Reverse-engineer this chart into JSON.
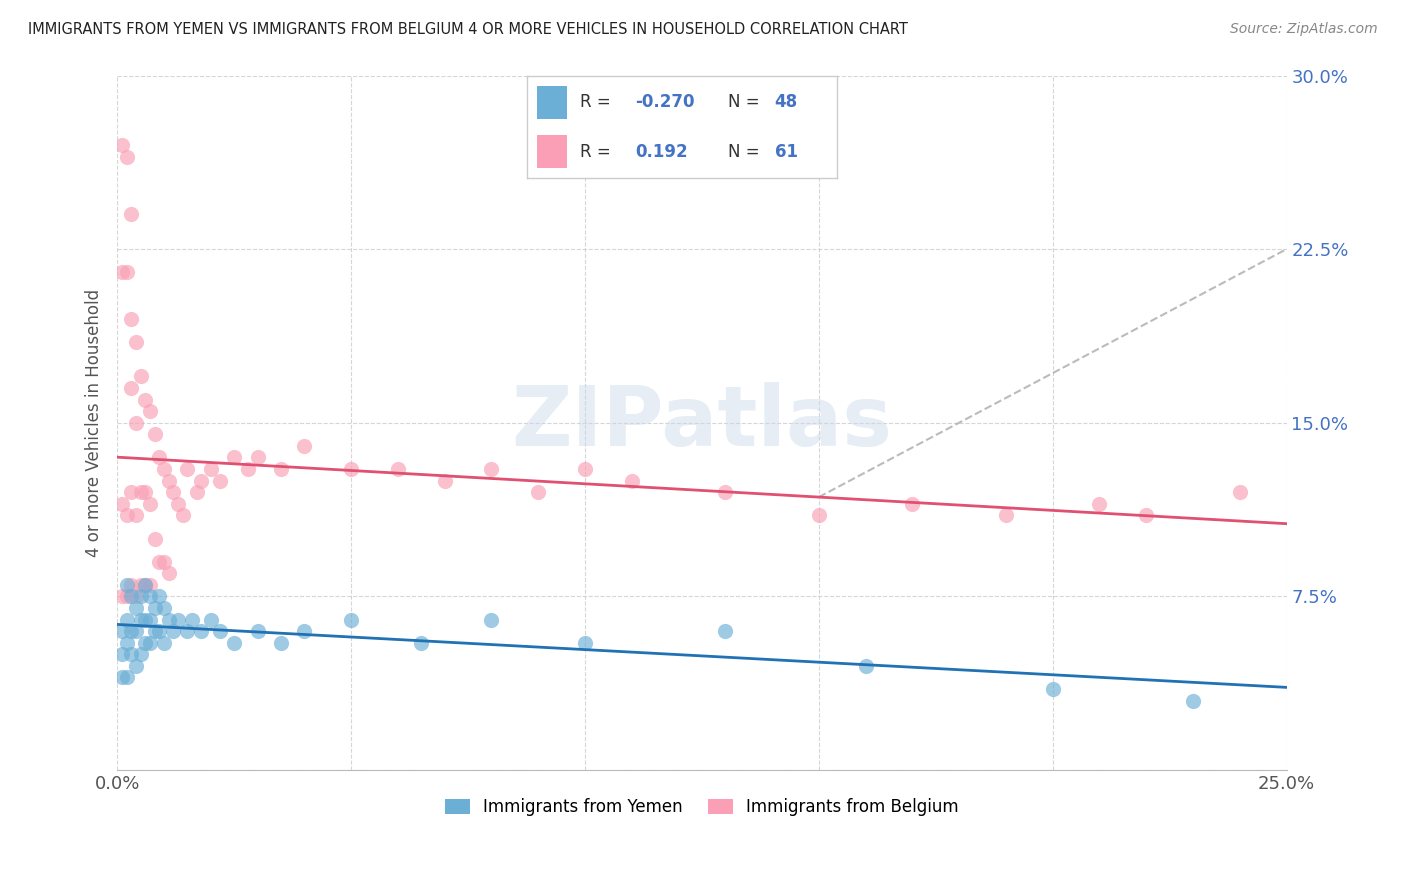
{
  "title": "IMMIGRANTS FROM YEMEN VS IMMIGRANTS FROM BELGIUM 4 OR MORE VEHICLES IN HOUSEHOLD CORRELATION CHART",
  "source": "Source: ZipAtlas.com",
  "ylabel": "4 or more Vehicles in Household",
  "xlim": [
    0.0,
    0.25
  ],
  "ylim": [
    0.0,
    0.3
  ],
  "xticks": [
    0.0,
    0.05,
    0.1,
    0.15,
    0.2,
    0.25
  ],
  "yticks": [
    0.0,
    0.075,
    0.15,
    0.225,
    0.3
  ],
  "legend_labels": [
    "Immigrants from Yemen",
    "Immigrants from Belgium"
  ],
  "R_yemen": -0.27,
  "N_yemen": 48,
  "R_belgium": 0.192,
  "N_belgium": 61,
  "color_yemen": "#6baed6",
  "color_belgium": "#fa9fb5",
  "line_color_yemen": "#2171b5",
  "line_color_belgium": "#e05070",
  "watermark": "ZIPatlas",
  "yemen_x": [
    0.001,
    0.001,
    0.001,
    0.002,
    0.002,
    0.002,
    0.002,
    0.003,
    0.003,
    0.003,
    0.004,
    0.004,
    0.004,
    0.005,
    0.005,
    0.005,
    0.006,
    0.006,
    0.006,
    0.007,
    0.007,
    0.007,
    0.008,
    0.008,
    0.009,
    0.009,
    0.01,
    0.01,
    0.011,
    0.012,
    0.013,
    0.015,
    0.016,
    0.018,
    0.02,
    0.022,
    0.025,
    0.03,
    0.035,
    0.04,
    0.05,
    0.065,
    0.08,
    0.1,
    0.13,
    0.16,
    0.2,
    0.23
  ],
  "yemen_y": [
    0.06,
    0.05,
    0.04,
    0.08,
    0.065,
    0.055,
    0.04,
    0.075,
    0.06,
    0.05,
    0.07,
    0.06,
    0.045,
    0.075,
    0.065,
    0.05,
    0.08,
    0.065,
    0.055,
    0.075,
    0.065,
    0.055,
    0.07,
    0.06,
    0.075,
    0.06,
    0.07,
    0.055,
    0.065,
    0.06,
    0.065,
    0.06,
    0.065,
    0.06,
    0.065,
    0.06,
    0.055,
    0.06,
    0.055,
    0.06,
    0.065,
    0.055,
    0.065,
    0.055,
    0.06,
    0.045,
    0.035,
    0.03
  ],
  "belgium_x": [
    0.001,
    0.001,
    0.001,
    0.001,
    0.002,
    0.002,
    0.002,
    0.002,
    0.003,
    0.003,
    0.003,
    0.003,
    0.003,
    0.004,
    0.004,
    0.004,
    0.004,
    0.005,
    0.005,
    0.005,
    0.006,
    0.006,
    0.006,
    0.007,
    0.007,
    0.007,
    0.008,
    0.008,
    0.009,
    0.009,
    0.01,
    0.01,
    0.011,
    0.011,
    0.012,
    0.013,
    0.014,
    0.015,
    0.017,
    0.018,
    0.02,
    0.022,
    0.025,
    0.028,
    0.03,
    0.035,
    0.04,
    0.05,
    0.06,
    0.07,
    0.08,
    0.09,
    0.1,
    0.11,
    0.13,
    0.15,
    0.17,
    0.19,
    0.21,
    0.22,
    0.24
  ],
  "belgium_y": [
    0.27,
    0.215,
    0.115,
    0.075,
    0.265,
    0.215,
    0.11,
    0.075,
    0.24,
    0.195,
    0.165,
    0.12,
    0.08,
    0.185,
    0.15,
    0.11,
    0.075,
    0.17,
    0.12,
    0.08,
    0.16,
    0.12,
    0.08,
    0.155,
    0.115,
    0.08,
    0.145,
    0.1,
    0.135,
    0.09,
    0.13,
    0.09,
    0.125,
    0.085,
    0.12,
    0.115,
    0.11,
    0.13,
    0.12,
    0.125,
    0.13,
    0.125,
    0.135,
    0.13,
    0.135,
    0.13,
    0.14,
    0.13,
    0.13,
    0.125,
    0.13,
    0.12,
    0.13,
    0.125,
    0.12,
    0.11,
    0.115,
    0.11,
    0.115,
    0.11,
    0.12
  ]
}
